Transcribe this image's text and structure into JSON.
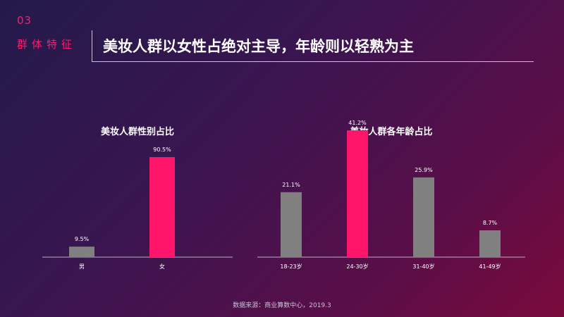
{
  "header": {
    "section_number": "03",
    "section_label": "群体特征",
    "headline": "美妆人群以女性占绝对主导，年龄则以轻熟为主"
  },
  "colors": {
    "highlight": "#ff1569",
    "normal": "#808080",
    "axis": "#b7b0c4"
  },
  "chart_data": [
    {
      "type": "bar",
      "title": "美妆人群性别占比",
      "categories": [
        "男",
        "女"
      ],
      "values": [
        9.5,
        90.5
      ],
      "value_labels": [
        "9.5%",
        "90.5%"
      ],
      "highlight_index": 1,
      "ylim": [
        0,
        100
      ],
      "grid": false,
      "legend": "none"
    },
    {
      "type": "bar",
      "title": "美妆人群各年龄占比",
      "categories": [
        "18-23岁",
        "24-30岁",
        "31-40岁",
        "41-49岁"
      ],
      "values": [
        21.1,
        41.2,
        25.9,
        8.7
      ],
      "value_labels": [
        "21.1%",
        "41.2%",
        "25.9%",
        "8.7%"
      ],
      "highlight_index": 1,
      "ylim": [
        0,
        45
      ],
      "grid": false,
      "legend": "none"
    }
  ],
  "footer": {
    "source": "数据来源：商业算数中心，2019.3"
  }
}
